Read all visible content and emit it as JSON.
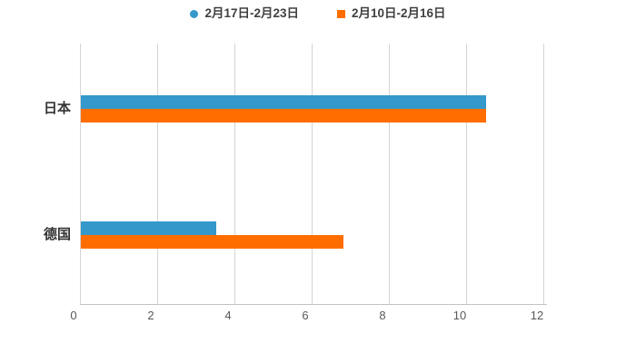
{
  "chart_data": {
    "type": "bar",
    "orientation": "horizontal",
    "title": "",
    "xlabel": "",
    "ylabel": "",
    "categories": [
      "日本",
      "德国"
    ],
    "series": [
      {
        "name": "2月17日-2月23日",
        "values": [
          10.5,
          3.5
        ],
        "color": "#3498cb",
        "marker": "circle"
      },
      {
        "name": "2月10日-2月16日",
        "values": [
          10.5,
          6.8
        ],
        "color": "#ff6d00",
        "marker": "square"
      }
    ],
    "xlim": [
      0,
      12
    ],
    "xticks": [
      0,
      2,
      4,
      6,
      8,
      10,
      12
    ],
    "grid": "vertical-only",
    "legend_position": "top-center",
    "colors": {
      "background": "#ffffff",
      "gridline": "#d4d4d4",
      "axis_line": "#c2c2c2",
      "tick_label": "#595959",
      "category_label": "#333333",
      "legend_text": "#404040"
    }
  }
}
